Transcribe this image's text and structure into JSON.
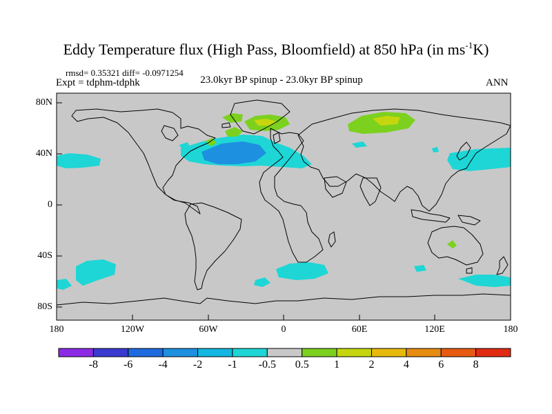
{
  "title_main": "Eddy Temperature flux (High Pass, Bloomfield) at 850 hPa (in ms",
  "title_sup": "-1",
  "title_end": "K)",
  "stats": "rmsd= 0.35321 diff= -0.0971254",
  "expt": "Expt = tdphm-tdphk",
  "subtitle": "23.0kyr BP spinup - 23.0kyr BP spinup",
  "season": "ANN",
  "map": {
    "background_color": "#c8c8c8",
    "y_ticks": [
      "80N",
      "40N",
      "0",
      "40S",
      "80S"
    ],
    "x_ticks": [
      "180",
      "120W",
      "60W",
      "0",
      "60E",
      "120E",
      "180"
    ]
  },
  "colorbar": {
    "labels": [
      "-8",
      "-6",
      "-4",
      "-2",
      "-1",
      "-0.5",
      "0.5",
      "1",
      "2",
      "4",
      "6",
      "8"
    ],
    "colors": [
      "#8c2be6",
      "#3a3acf",
      "#1e6be0",
      "#1e90e0",
      "#12b6e0",
      "#1ed6d6",
      "#c8c8c8",
      "#7cd11e",
      "#c6d60e",
      "#e6b90c",
      "#e68c12",
      "#e65a12",
      "#e02a12"
    ]
  }
}
